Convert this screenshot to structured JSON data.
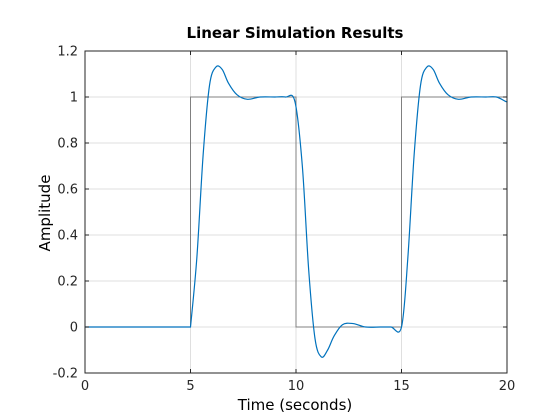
{
  "chart_data": {
    "type": "line",
    "title": "Linear Simulation Results",
    "xlabel": "Time (seconds)",
    "ylabel": "Amplitude",
    "xlim": [
      0,
      20
    ],
    "ylim": [
      -0.2,
      1.2
    ],
    "x_ticks": [
      0,
      5,
      10,
      15,
      20
    ],
    "y_ticks": [
      -0.2,
      0,
      0.2,
      0.4,
      0.6,
      0.8,
      1,
      1.2
    ],
    "x_tick_labels": [
      "0",
      "5",
      "10",
      "15",
      "20"
    ],
    "y_tick_labels": [
      "-0.2",
      "0",
      "0.2",
      "0.4",
      "0.6",
      "0.8",
      "1",
      "1.2"
    ],
    "grid": true,
    "series": [
      {
        "role": "input",
        "color": "#808080",
        "x": [
          0,
          5,
          5,
          10,
          10,
          15,
          15,
          20,
          20
        ],
        "y": [
          0,
          0,
          1,
          1,
          0,
          0,
          1,
          1,
          0.13
        ]
      },
      {
        "role": "response",
        "color": "#0072bd",
        "x": [
          0,
          5,
          5.3,
          5.6,
          5.9,
          6.2,
          6.5,
          6.8,
          7.2,
          7.7,
          8.3,
          9,
          9.5,
          9.95,
          10.3,
          10.6,
          10.9,
          11.2,
          11.5,
          11.8,
          12.2,
          12.7,
          13.3,
          14,
          14.5,
          15,
          15.3,
          15.6,
          15.9,
          16.2,
          16.5,
          16.8,
          17.2,
          17.7,
          18.3,
          19,
          19.5,
          19.95,
          20
        ],
        "y": [
          0,
          0,
          0.3,
          0.75,
          1.05,
          1.13,
          1.12,
          1.06,
          1.01,
          0.99,
          1,
          1,
          1,
          0.98,
          0.7,
          0.25,
          -0.05,
          -0.13,
          -0.1,
          -0.04,
          0.01,
          0.015,
          0,
          0,
          0,
          0,
          0.3,
          0.75,
          1.05,
          1.13,
          1.12,
          1.06,
          1.01,
          0.99,
          1,
          1,
          1,
          0.98,
          0.98
        ]
      }
    ]
  }
}
